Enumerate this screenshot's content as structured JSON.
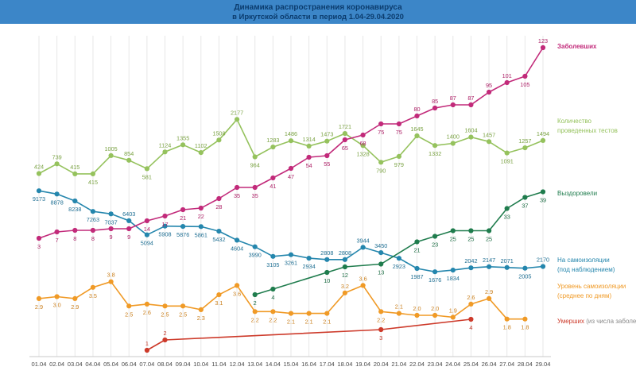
{
  "header": {
    "title_line1": "Динамика распространения коронавируса",
    "title_line2": "в Иркутской области в период  1.04-29.04.2020"
  },
  "chart_data": {
    "type": "line",
    "title": "Динамика распространения коронавируса в Иркутской области в период 1.04-29.04.2020",
    "grid": true,
    "legend_position": "right",
    "x_labels": [
      "01.04",
      "02.04",
      "03.04",
      "04.04",
      "05.04",
      "06.04",
      "07.04",
      "08.04",
      "09.04",
      "10.04",
      "11.04",
      "12.04",
      "13.04",
      "14.04",
      "15.04",
      "16.04",
      "17.04",
      "18.04",
      "19.04",
      "20.04",
      "21.04",
      "22.04",
      "23.04",
      "24.04",
      "25.04",
      "26.04",
      "27.04",
      "28.04",
      "29.04"
    ],
    "series": [
      {
        "id": "tests",
        "legend_lines": [
          "Количество",
          "проведенных тестов"
        ],
        "color": "#95c25d",
        "label_color": "#7ba344",
        "values": [
          "424",
          "739",
          "415",
          "415",
          "1005",
          "854",
          "581",
          "1124",
          "1355",
          "1102",
          "1508",
          "2177",
          "964",
          "1283",
          "1486",
          "1314",
          "1473",
          "1721",
          "1328",
          "790",
          "979",
          "1645",
          "1332",
          "1400",
          "1604",
          "1457",
          "1091",
          "1257",
          "1494"
        ]
      },
      {
        "id": "isolation",
        "legend_lines": [
          "На самоизоляции",
          "(под наблюдением)"
        ],
        "color": "#2486ad",
        "label_color": "#1f6f93",
        "values": [
          "9173",
          "8878",
          "8238",
          "7263",
          "7037",
          "6403",
          "5094",
          "5908",
          "5876",
          "5861",
          "5432",
          "4604",
          "3990",
          "3105",
          "3261",
          "2934",
          "2808",
          "2808",
          "3944",
          "3450",
          "2923",
          "1987",
          "1676",
          "1834",
          "2042",
          "2147",
          "2071",
          "2005",
          "2170"
        ]
      },
      {
        "id": "recovered",
        "legend_lines": [
          "Выздоровели"
        ],
        "color": "#1f7c4d",
        "label_color": "#1a6b42",
        "values": [
          null,
          null,
          null,
          null,
          null,
          null,
          null,
          null,
          null,
          null,
          null,
          null,
          "2",
          "4",
          null,
          null,
          "10",
          "12",
          null,
          "13",
          null,
          "21",
          "23",
          "25",
          "25",
          "25",
          "33",
          "37",
          "39"
        ]
      },
      {
        "id": "isolation-level",
        "legend_lines": [
          "Уровень самоизоляции",
          "(среднее по дням)"
        ],
        "color": "#f09a26",
        "label_color": "#c97f1d",
        "values": [
          "2.9",
          "3.0",
          "2.9",
          "3.5",
          "3.8",
          "2.5",
          "2.6",
          "2.5",
          "2.5",
          "2.3",
          "3.1",
          "3.6",
          "2.2",
          "2.2",
          "2.1",
          "2.1",
          "2.1",
          "3.2",
          "3.6",
          "2.2",
          "2.1",
          "2.0",
          "2.0",
          "1.9",
          "2.6",
          "2.9",
          "1.8",
          "1.8",
          null
        ]
      },
      {
        "id": "deaths",
        "legend_lines": [
          "Умерших"
        ],
        "legend_suffix": " (из числа заболевших)",
        "color": "#cd3a2a",
        "label_color": "#c23527",
        "values": [
          null,
          null,
          null,
          null,
          null,
          null,
          "1",
          "2",
          null,
          null,
          null,
          null,
          null,
          null,
          null,
          null,
          null,
          null,
          null,
          "3",
          null,
          null,
          null,
          null,
          "4",
          null,
          null,
          null,
          null
        ]
      },
      {
        "id": "infected",
        "legend_lines": [
          "Заболевших"
        ],
        "color": "#c22a7a",
        "label_color": "#ad1f66",
        "values": [
          "3",
          "7",
          "8",
          "8",
          "9",
          "9",
          "14",
          "17",
          "21",
          "22",
          "28",
          "35",
          "35",
          "41",
          "47",
          "54",
          "55",
          "65",
          "68",
          "75",
          "75",
          "80",
          "85",
          "87",
          "87",
          "95",
          "101",
          "105",
          "123"
        ]
      }
    ]
  }
}
